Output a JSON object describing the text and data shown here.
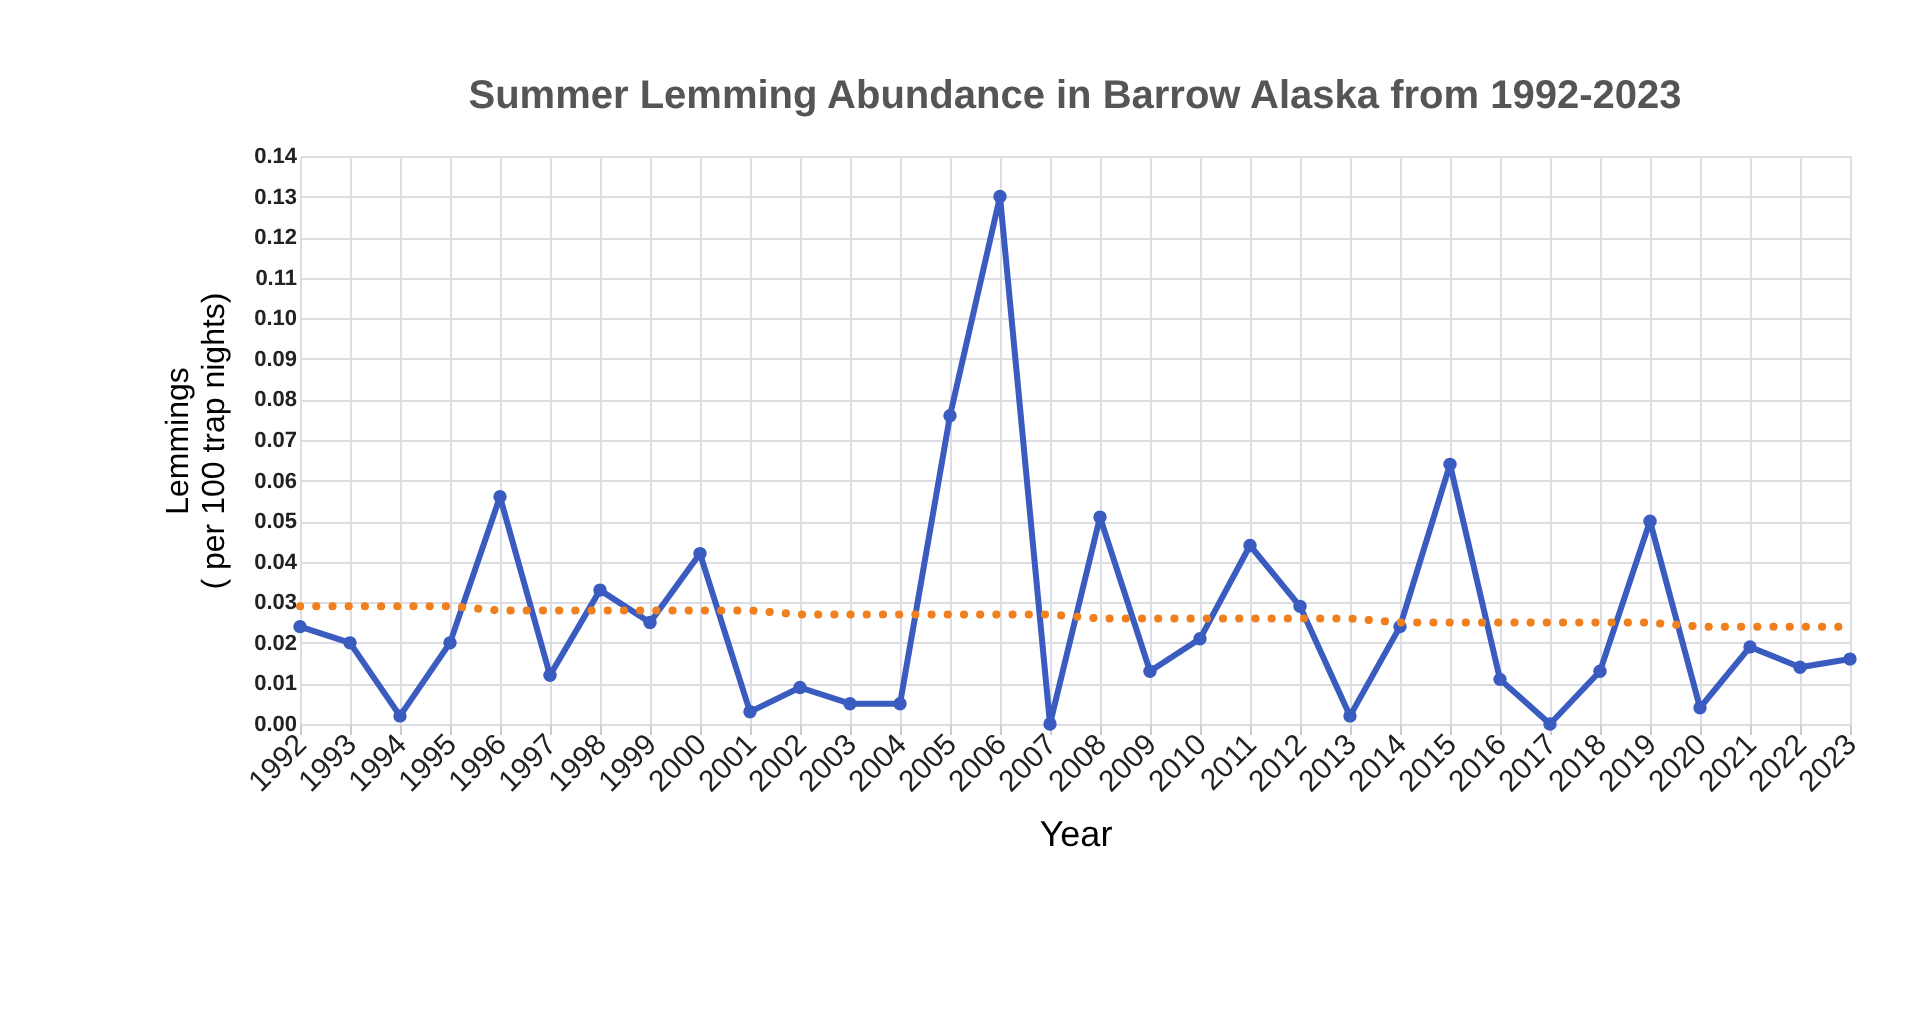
{
  "chart_data": {
    "type": "line",
    "title": "Summer Lemming Abundance in Barrow Alaska from 1992-2023",
    "xlabel": "Year",
    "ylabel": "Lemmings\n( per 100 trap nights)",
    "categories": [
      "1992",
      "1993",
      "1994",
      "1995",
      "1996",
      "1997",
      "1998",
      "1999",
      "2000",
      "2001",
      "2002",
      "2003",
      "2004",
      "2005",
      "2006",
      "2007",
      "2008",
      "2009",
      "2010",
      "2011",
      "2012",
      "2013",
      "2014",
      "2015",
      "2016",
      "2017",
      "2018",
      "2019",
      "2020",
      "2021",
      "2022",
      "2023"
    ],
    "series": [
      {
        "color": "#3a5bbf",
        "marker": "circle",
        "line_style": "solid",
        "values": [
          0.024,
          0.02,
          0.002,
          0.02,
          0.056,
          0.012,
          0.033,
          0.025,
          0.042,
          0.003,
          0.009,
          0.005,
          0.005,
          0.076,
          0.13,
          0.0,
          0.051,
          0.013,
          0.021,
          0.044,
          0.029,
          0.002,
          0.024,
          0.064,
          0.011,
          0.0,
          0.013,
          0.05,
          0.004,
          0.019,
          0.014,
          0.016
        ]
      },
      {
        "type": "line",
        "color": "#f07f1e",
        "marker": "none",
        "line_style": "dotted",
        "values": [
          0.029,
          0.029,
          0.029,
          0.029,
          0.028,
          0.028,
          0.028,
          0.028,
          0.028,
          0.028,
          0.027,
          0.027,
          0.027,
          0.027,
          0.027,
          0.027,
          0.026,
          0.026,
          0.026,
          0.026,
          0.026,
          0.026,
          0.025,
          0.025,
          0.025,
          0.025,
          0.025,
          0.025,
          0.024,
          0.024,
          0.024,
          0.024
        ]
      }
    ],
    "ylim": [
      0,
      0.14
    ],
    "yticks": [
      {
        "value": 0,
        "label": "0.00"
      },
      0.01,
      0.02,
      0.03,
      0.04,
      0.05,
      0.06,
      0.07,
      0.08,
      0.09,
      {
        "value": 0.1,
        "label": "0.10"
      },
      0.11,
      0.12,
      0.13,
      0.14
    ],
    "grid": true,
    "legend": false
  }
}
